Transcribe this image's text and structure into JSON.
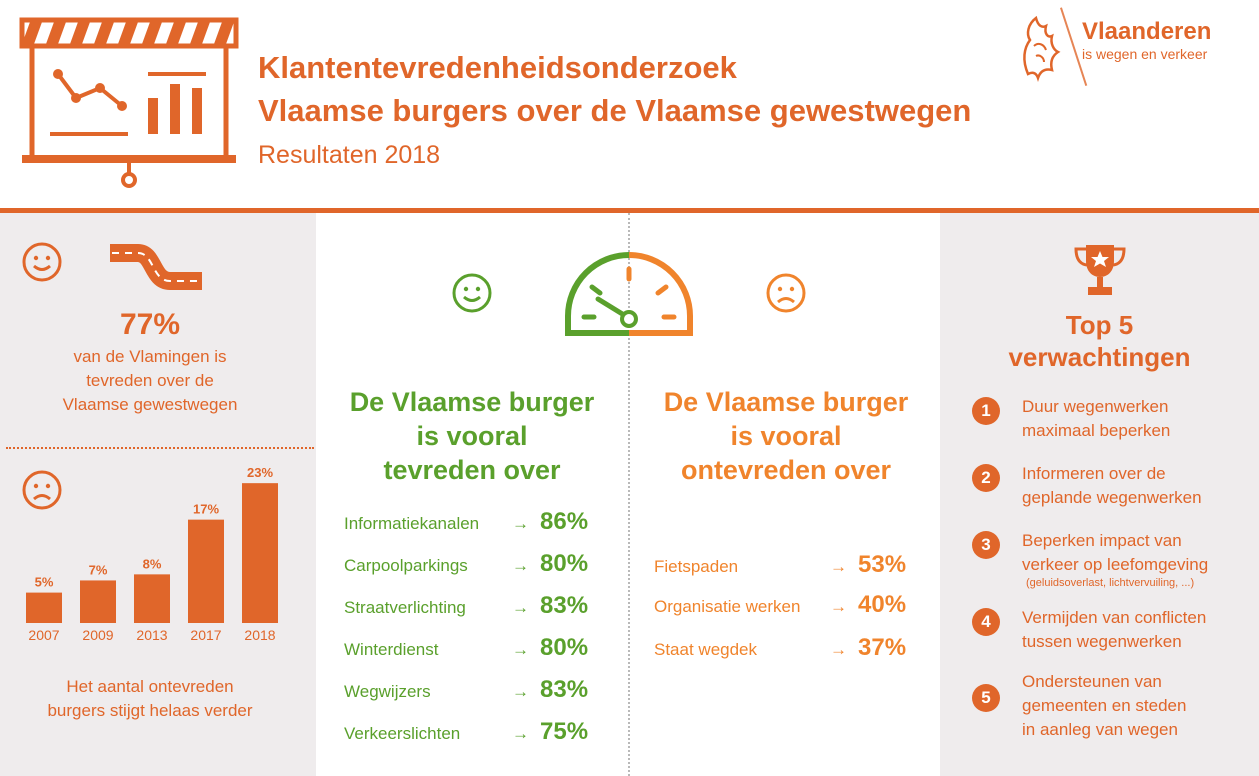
{
  "header": {
    "title_line1": "Klantentevredenheidsonderzoek",
    "title_line2": "Vlaamse burgers over de Vlaamse gewestwegen",
    "subtitle": "Resultaten 2018",
    "logo_name": "Vlaanderen",
    "logo_tagline": "is wegen en verkeer"
  },
  "left": {
    "satisfied_pct": "77%",
    "satisfied_text_line1": "van de Vlamingen is",
    "satisfied_text_line2": "tevreden over de",
    "satisfied_text_line3": "Vlaamse gewestwegen",
    "dissatisfied_text_line1": "Het aantal ontevreden",
    "dissatisfied_text_line2": "burgers stijgt helaas verder"
  },
  "chart_data": {
    "type": "bar",
    "categories": [
      "2007",
      "2009",
      "2013",
      "2017",
      "2018"
    ],
    "values": [
      5,
      7,
      8,
      17,
      23
    ],
    "data_labels": [
      "5%",
      "7%",
      "8%",
      "17%",
      "23%"
    ],
    "title": "",
    "xlabel": "",
    "ylabel": "",
    "ylim": [
      0,
      25
    ],
    "grid": false,
    "bar_color": "#e0662a"
  },
  "middle": {
    "satisfied_heading_line1": "De Vlaamse burger",
    "satisfied_heading_line2": "is vooral",
    "satisfied_heading_line3": "tevreden over",
    "dissatisfied_heading_line1": "De Vlaamse burger",
    "dissatisfied_heading_line2": "is vooral",
    "dissatisfied_heading_line3": "ontevreden over",
    "arrow": "→",
    "satisfied_items": [
      {
        "label": "Informatiekanalen",
        "value": "86%"
      },
      {
        "label": "Carpoolparkings",
        "value": "80%"
      },
      {
        "label": "Straatverlichting",
        "value": "83%"
      },
      {
        "label": "Winterdienst",
        "value": "80%"
      },
      {
        "label": "Wegwijzers",
        "value": "83%"
      },
      {
        "label": "Verkeerslichten",
        "value": "75%"
      }
    ],
    "dissatisfied_items": [
      {
        "label": "Fietspaden",
        "value": "53%"
      },
      {
        "label": "Organisatie werken",
        "value": "40%"
      },
      {
        "label": "Staat wegdek",
        "value": "37%"
      }
    ]
  },
  "right": {
    "title_line1": "Top 5",
    "title_line2": "verwachtingen",
    "items": [
      {
        "num": "1",
        "line1": "Duur wegenwerken",
        "line2": "maximaal beperken",
        "small": ""
      },
      {
        "num": "2",
        "line1": "Informeren over de",
        "line2": "geplande wegenwerken",
        "small": ""
      },
      {
        "num": "3",
        "line1": "Beperken impact van",
        "line2": "verkeer op leefomgeving",
        "small": "(geluidsoverlast, lichtvervuiling, ...)"
      },
      {
        "num": "4",
        "line1": "Vermijden van conflicten",
        "line2": "tussen wegenwerken",
        "small": ""
      },
      {
        "num": "5",
        "line1": "Ondersteunen van",
        "line2": "gemeenten en steden",
        "line3": "in  aanleg van wegen"
      }
    ]
  },
  "colors": {
    "brand_orange": "#e0662a",
    "satisfied_green": "#5aa02c",
    "dissatisfied_orange": "#f0842c",
    "panel_grey": "#efeced"
  },
  "icons": [
    "presentation-board-icon",
    "lion-logo-icon",
    "smile-icon",
    "road-icon",
    "frown-icon",
    "gauge-icon",
    "trophy-icon"
  ]
}
